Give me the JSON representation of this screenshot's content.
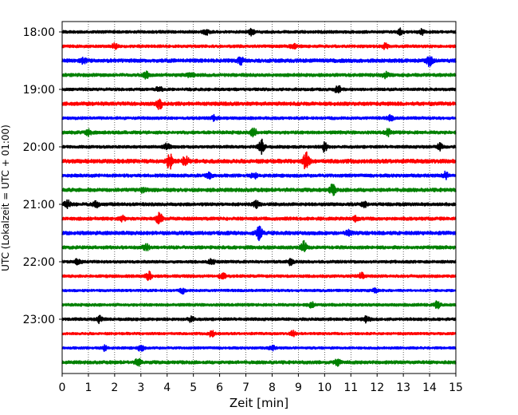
{
  "chart_data": {
    "type": "line",
    "chart_kind": "seismogram-helicorder",
    "title": "",
    "xlabel": "Zeit  [min]",
    "ylabel": "UTC (Lokalzeit = UTC + 01:00)",
    "xlim": [
      0,
      15
    ],
    "x_ticks": [
      "0",
      "1",
      "2",
      "3",
      "4",
      "5",
      "6",
      "7",
      "8",
      "9",
      "10",
      "11",
      "12",
      "13",
      "14",
      "15"
    ],
    "y_ticks": [
      "18:00",
      "19:00",
      "20:00",
      "21:00",
      "22:00",
      "23:00"
    ],
    "vertical_grid": "dotted",
    "trace_interval_min": 15,
    "trace_colors": [
      "#000000",
      "#ff0000",
      "#0000ff",
      "#008000"
    ],
    "traces": [
      {
        "start": "18:00",
        "noise": 0.35,
        "events": [
          [
            5.5,
            0.6
          ],
          [
            7.2,
            0.7
          ],
          [
            12.9,
            0.8
          ],
          [
            13.7,
            0.6
          ]
        ]
      },
      {
        "start": "18:15",
        "noise": 0.35,
        "events": [
          [
            2.0,
            0.6
          ],
          [
            8.8,
            0.7
          ],
          [
            12.3,
            0.7
          ]
        ]
      },
      {
        "start": "18:30",
        "noise": 0.45,
        "events": [
          [
            0.8,
            0.6
          ],
          [
            6.8,
            0.8
          ],
          [
            14.0,
            1.3
          ]
        ]
      },
      {
        "start": "18:45",
        "noise": 0.4,
        "events": [
          [
            3.2,
            0.7
          ],
          [
            4.9,
            0.7
          ],
          [
            12.3,
            0.8
          ]
        ]
      },
      {
        "start": "19:00",
        "noise": 0.35,
        "events": [
          [
            3.7,
            0.8
          ],
          [
            10.5,
            1.0
          ]
        ]
      },
      {
        "start": "19:15",
        "noise": 0.45,
        "events": [
          [
            3.7,
            1.2
          ]
        ]
      },
      {
        "start": "19:30",
        "noise": 0.35,
        "events": [
          [
            5.8,
            0.6
          ],
          [
            12.5,
            0.6
          ]
        ]
      },
      {
        "start": "19:45",
        "noise": 0.4,
        "events": [
          [
            1.0,
            0.7
          ],
          [
            7.3,
            1.1
          ],
          [
            12.4,
            0.8
          ]
        ]
      },
      {
        "start": "20:00",
        "noise": 0.35,
        "events": [
          [
            4.0,
            0.8
          ],
          [
            7.6,
            1.8
          ],
          [
            10.0,
            1.2
          ],
          [
            14.4,
            0.8
          ]
        ]
      },
      {
        "start": "20:15",
        "noise": 0.5,
        "events": [
          [
            4.1,
            1.8
          ],
          [
            4.7,
            1.2
          ],
          [
            9.3,
            2.2
          ]
        ]
      },
      {
        "start": "20:30",
        "noise": 0.4,
        "events": [
          [
            5.6,
            0.6
          ],
          [
            7.3,
            0.7
          ],
          [
            14.6,
            0.8
          ]
        ]
      },
      {
        "start": "20:45",
        "noise": 0.45,
        "events": [
          [
            3.1,
            0.6
          ],
          [
            10.3,
            1.3
          ]
        ]
      },
      {
        "start": "21:00",
        "noise": 0.4,
        "events": [
          [
            0.2,
            0.9
          ],
          [
            1.3,
            0.7
          ],
          [
            7.4,
            0.8
          ],
          [
            11.5,
            0.7
          ]
        ]
      },
      {
        "start": "21:15",
        "noise": 0.4,
        "events": [
          [
            2.3,
            0.6
          ],
          [
            3.7,
            1.6
          ],
          [
            11.2,
            0.7
          ]
        ]
      },
      {
        "start": "21:30",
        "noise": 0.45,
        "events": [
          [
            7.5,
            1.8
          ],
          [
            10.9,
            0.7
          ]
        ]
      },
      {
        "start": "21:45",
        "noise": 0.4,
        "events": [
          [
            3.2,
            0.7
          ],
          [
            9.2,
            1.4
          ]
        ]
      },
      {
        "start": "22:00",
        "noise": 0.35,
        "events": [
          [
            0.6,
            0.8
          ],
          [
            5.7,
            0.7
          ],
          [
            8.7,
            0.7
          ]
        ]
      },
      {
        "start": "22:15",
        "noise": 0.35,
        "events": [
          [
            3.3,
            1.1
          ],
          [
            6.1,
            0.9
          ],
          [
            11.4,
            0.7
          ]
        ]
      },
      {
        "start": "22:30",
        "noise": 0.3,
        "events": [
          [
            4.6,
            0.6
          ],
          [
            11.9,
            0.6
          ]
        ]
      },
      {
        "start": "22:45",
        "noise": 0.35,
        "events": [
          [
            9.5,
            0.6
          ],
          [
            14.3,
            0.9
          ]
        ]
      },
      {
        "start": "23:00",
        "noise": 0.35,
        "events": [
          [
            1.4,
            0.8
          ],
          [
            4.9,
            0.7
          ],
          [
            11.6,
            0.7
          ]
        ]
      },
      {
        "start": "23:15",
        "noise": 0.3,
        "events": [
          [
            5.7,
            0.8
          ],
          [
            8.8,
            0.6
          ]
        ]
      },
      {
        "start": "23:30",
        "noise": 0.3,
        "events": [
          [
            1.6,
            0.6
          ],
          [
            3.0,
            0.8
          ],
          [
            8.0,
            0.6
          ]
        ]
      },
      {
        "start": "23:45",
        "noise": 0.4,
        "events": [
          [
            2.9,
            0.9
          ],
          [
            10.5,
            0.7
          ]
        ]
      }
    ]
  }
}
